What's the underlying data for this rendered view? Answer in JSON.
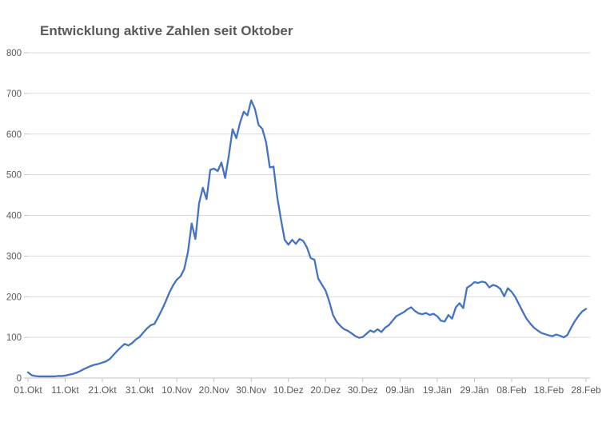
{
  "colors": {
    "line": "#4472C4",
    "gridline": "#D9D9D9",
    "axis": "#C0C0C0",
    "text": "#595959",
    "title_text": "#595959",
    "background": "#FFFFFF"
  },
  "chart_data": {
    "type": "line",
    "title": "Entwicklung aktive Zahlen seit Oktober",
    "xlabel": "",
    "ylabel": "",
    "ylim": [
      0,
      800
    ],
    "y_ticks": [
      0,
      100,
      200,
      300,
      400,
      500,
      600,
      700,
      800
    ],
    "x_tick_labels": [
      "01.Okt",
      "11.Okt",
      "21.Okt",
      "31.Okt",
      "10.Nov",
      "20.Nov",
      "30.Nov",
      "10.Dez",
      "20.Dez",
      "30.Dez",
      "09.Jän",
      "19.Jän",
      "29.Jän",
      "08.Feb",
      "18.Feb",
      "28.Feb"
    ],
    "x_tick_interval_days": 10,
    "x_unit": "days since 01.Okt",
    "grid": "horizontal",
    "legend": "none",
    "series": [
      {
        "values_daily": [
          14,
          7,
          5,
          4,
          4,
          4,
          4,
          4,
          5,
          5,
          6,
          8,
          10,
          13,
          17,
          22,
          26,
          30,
          33,
          35,
          38,
          41,
          47,
          57,
          67,
          76,
          84,
          80,
          86,
          95,
          101,
          112,
          122,
          130,
          133,
          150,
          168,
          188,
          210,
          228,
          242,
          250,
          268,
          310,
          380,
          342,
          430,
          468,
          440,
          512,
          515,
          509,
          530,
          492,
          548,
          612,
          590,
          628,
          655,
          646,
          683,
          662,
          622,
          613,
          580,
          518,
          520,
          445,
          390,
          340,
          328,
          340,
          330,
          342,
          337,
          321,
          295,
          291,
          245,
          230,
          215,
          188,
          155,
          138,
          128,
          120,
          116,
          110,
          103,
          99,
          101,
          109,
          117,
          113,
          120,
          113,
          124,
          130,
          141,
          152,
          157,
          162,
          169,
          174,
          165,
          159,
          157,
          160,
          155,
          158,
          152,
          141,
          139,
          155,
          146,
          174,
          184,
          172,
          222,
          228,
          236,
          234,
          237,
          235,
          223,
          229,
          226,
          219,
          201,
          221,
          212,
          199,
          181,
          163,
          146,
          134,
          124,
          117,
          111,
          108,
          105,
          103,
          107,
          104,
          100,
          106,
          124,
          140,
          153,
          164,
          170
        ]
      }
    ]
  }
}
